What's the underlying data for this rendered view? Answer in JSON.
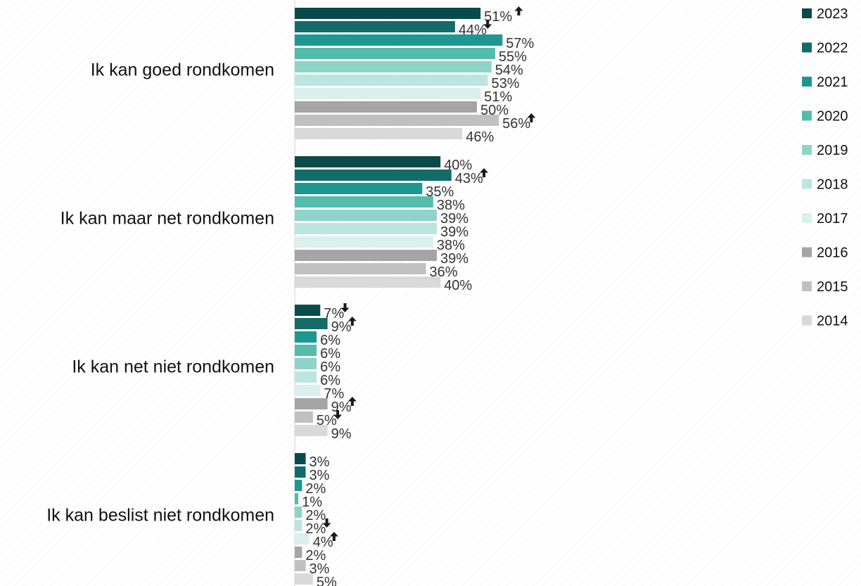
{
  "chart_data": {
    "type": "bar",
    "orientation": "horizontal",
    "title": "",
    "xlabel": "",
    "ylabel": "",
    "xlim": [
      0,
      100
    ],
    "grid": false,
    "legend_position": "right",
    "value_suffix": "%",
    "categories": [
      "Ik kan goed rondkomen",
      "Ik kan maar net rondkomen",
      "Ik kan net niet rondkomen",
      "Ik kan beslist niet rondkomen"
    ],
    "series": [
      {
        "name": "2023",
        "color": "#0b4a4a",
        "values": [
          51,
          40,
          7,
          3
        ],
        "trend": [
          "up",
          null,
          "down",
          null
        ]
      },
      {
        "name": "2022",
        "color": "#136c6a",
        "values": [
          44,
          43,
          9,
          3
        ],
        "trend": [
          "down",
          "up",
          "up",
          null
        ]
      },
      {
        "name": "2021",
        "color": "#1c9890",
        "values": [
          57,
          35,
          6,
          2
        ],
        "trend": [
          null,
          null,
          null,
          null
        ]
      },
      {
        "name": "2020",
        "color": "#54bcac",
        "values": [
          55,
          38,
          6,
          1
        ],
        "trend": [
          null,
          null,
          null,
          null
        ]
      },
      {
        "name": "2019",
        "color": "#8ed4c9",
        "values": [
          54,
          39,
          6,
          2
        ],
        "trend": [
          null,
          null,
          null,
          null
        ]
      },
      {
        "name": "2018",
        "color": "#bde5df",
        "values": [
          53,
          39,
          6,
          2
        ],
        "trend": [
          null,
          null,
          null,
          "down"
        ]
      },
      {
        "name": "2017",
        "color": "#dbefed",
        "values": [
          51,
          38,
          7,
          4
        ],
        "trend": [
          null,
          null,
          null,
          "up"
        ]
      },
      {
        "name": "2016",
        "color": "#a5a5a5",
        "values": [
          50,
          39,
          9,
          2
        ],
        "trend": [
          null,
          null,
          "up",
          null
        ]
      },
      {
        "name": "2015",
        "color": "#c0c0c0",
        "values": [
          56,
          36,
          5,
          3
        ],
        "trend": [
          "up",
          null,
          "down",
          null
        ]
      },
      {
        "name": "2014",
        "color": "#d9d9d9",
        "values": [
          46,
          40,
          9,
          5
        ],
        "trend": [
          null,
          null,
          null,
          null
        ]
      }
    ],
    "axis_color": "#d0d0d0",
    "label_color": "#333333",
    "arrow_color": "#1a1a1a"
  }
}
